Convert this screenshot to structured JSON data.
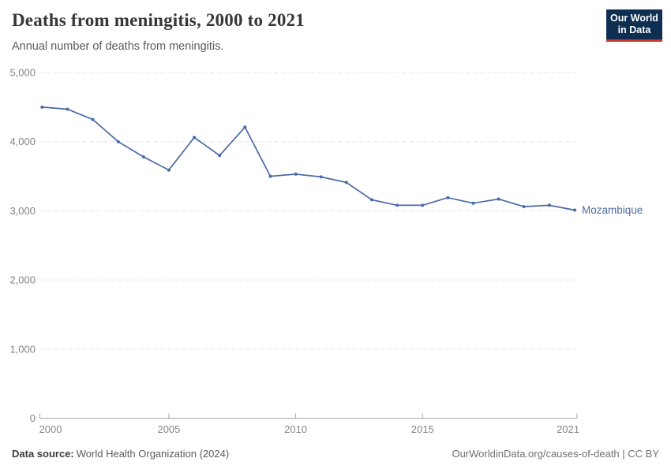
{
  "header": {
    "title": "Deaths from meningitis, 2000 to 2021",
    "subtitle": "Annual number of deaths from meningitis."
  },
  "logo": {
    "line1": "Our World",
    "line2": "in Data",
    "bg_color": "#0e2e52",
    "bar_color": "#cf3a30"
  },
  "chart_data": {
    "type": "line",
    "title": "Deaths from meningitis, 2000 to 2021",
    "xlabel": "",
    "ylabel": "",
    "xlim": [
      2000,
      2021
    ],
    "ylim": [
      0,
      5000
    ],
    "x_ticks": [
      2000,
      2005,
      2010,
      2015,
      2021
    ],
    "y_ticks": [
      0,
      1000,
      2000,
      3000,
      4000,
      5000
    ],
    "y_tick_labels": [
      "0",
      "1,000",
      "2,000",
      "3,000",
      "4,000",
      "5,000"
    ],
    "grid": "horizontal-dashed",
    "legend": "inline-end-label",
    "series": [
      {
        "name": "Mozambique",
        "color": "#4a69a8",
        "x": [
          2000,
          2001,
          2002,
          2003,
          2004,
          2005,
          2006,
          2007,
          2008,
          2009,
          2010,
          2011,
          2012,
          2013,
          2014,
          2015,
          2016,
          2017,
          2018,
          2019,
          2020,
          2021
        ],
        "values": [
          4500,
          4470,
          4320,
          4000,
          3780,
          3590,
          4060,
          3800,
          4210,
          3500,
          3530,
          3490,
          3410,
          3160,
          3080,
          3080,
          3190,
          3110,
          3170,
          3060,
          3080,
          3010
        ]
      }
    ]
  },
  "footer": {
    "datasource_label": "Data source:",
    "datasource_value": "World Health Organization (2024)",
    "attribution": "OurWorldinData.org/causes-of-death | CC BY"
  }
}
